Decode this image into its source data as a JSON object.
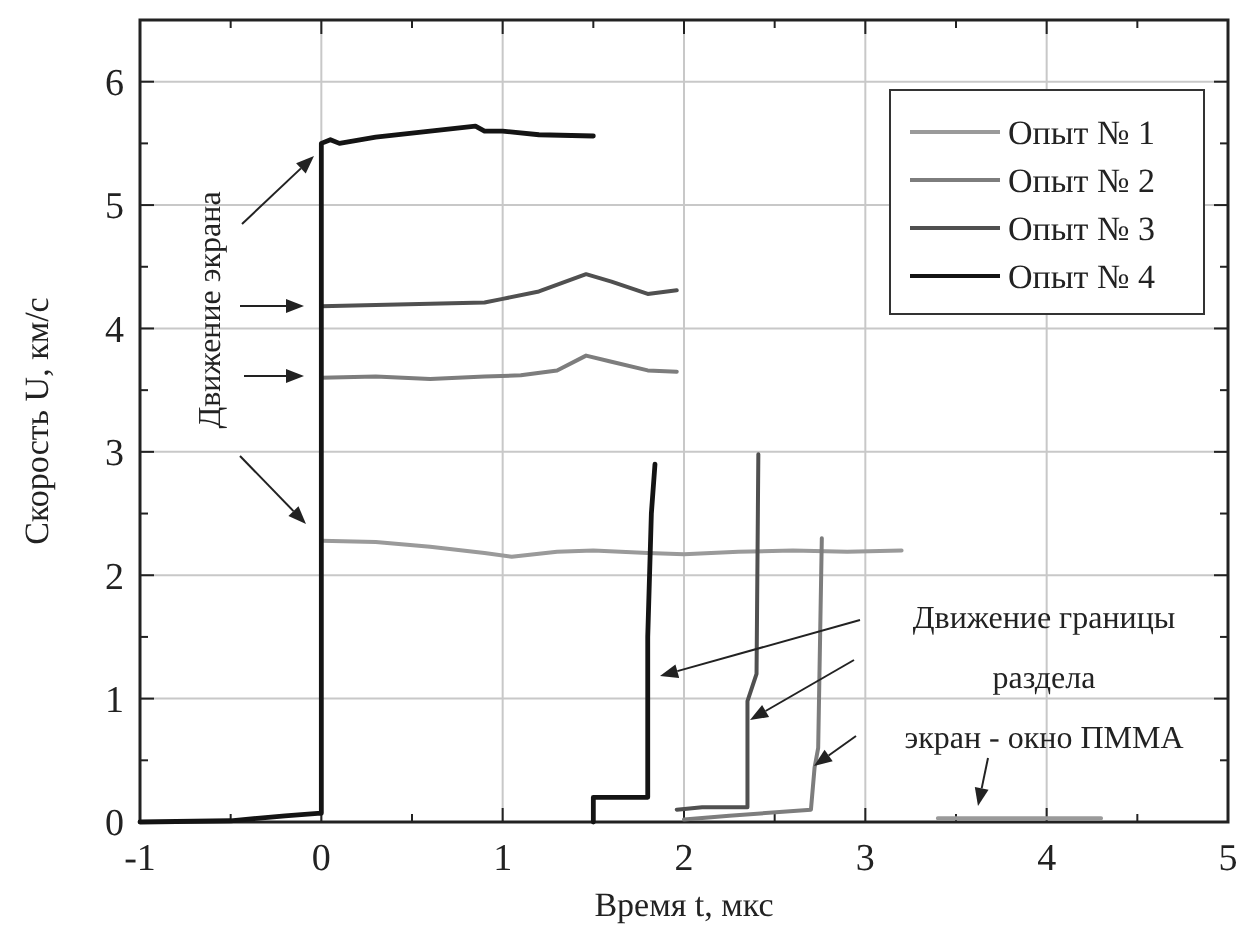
{
  "chart_data": {
    "type": "line",
    "xlabel": "Время t, мкс",
    "ylabel": "Скорость U, км/с",
    "xlim": [
      -1,
      5
    ],
    "ylim": [
      0,
      6.5
    ],
    "xticks": [
      -1,
      {
        "value": -0.5,
        "label": null
      },
      0,
      {
        "value": 0.5,
        "label": null
      },
      1,
      {
        "value": 1.5,
        "label": null
      },
      2,
      {
        "value": 2.5,
        "label": null
      },
      3,
      {
        "value": 3.5,
        "label": null
      },
      4,
      {
        "value": 4.5,
        "label": null
      },
      5
    ],
    "yticks": [
      0,
      {
        "value": 0.5,
        "label": null
      },
      1,
      {
        "value": 1.5,
        "label": null
      },
      2,
      {
        "value": 2.5,
        "label": null
      },
      3,
      {
        "value": 3.5,
        "label": null
      },
      4,
      {
        "value": 4.5,
        "label": null
      },
      5,
      {
        "value": 5.5,
        "label": null
      },
      6
    ],
    "grid": true,
    "legend": "top right",
    "line_style": "solid",
    "marker": "none",
    "series": [
      {
        "name": "Опыт № 1",
        "color": "#9a9a9a",
        "x": [
          0,
          0.3,
          0.6,
          0.9,
          1.05,
          1.3,
          1.5,
          1.8,
          2.0,
          2.3,
          2.6,
          2.9,
          3.2,
          null,
          3.4,
          3.8,
          4.3
        ],
        "values": [
          2.28,
          2.27,
          2.23,
          2.18,
          2.15,
          2.19,
          2.2,
          2.18,
          2.17,
          2.19,
          2.2,
          2.19,
          2.2,
          null,
          0.03,
          0.03,
          0.03
        ]
      },
      {
        "name": "Опыт № 2",
        "color": "#7d7d7d",
        "x": [
          0,
          0.3,
          0.6,
          0.9,
          1.1,
          1.3,
          1.46,
          1.6,
          1.8,
          1.96,
          null,
          2.0,
          2.25,
          2.7,
          2.72,
          2.74,
          2.76
        ],
        "values": [
          3.6,
          3.61,
          3.59,
          3.61,
          3.62,
          3.66,
          3.78,
          3.73,
          3.66,
          3.65,
          null,
          0.02,
          0.05,
          0.1,
          0.44,
          0.6,
          2.3
        ]
      },
      {
        "name": "Опыт № 3",
        "color": "#505050",
        "x": [
          0,
          0.3,
          0.6,
          0.9,
          1.0,
          1.2,
          1.46,
          1.6,
          1.8,
          1.96,
          null,
          1.96,
          2.1,
          2.35,
          2.35,
          2.4,
          2.41
        ],
        "values": [
          4.18,
          4.19,
          4.2,
          4.21,
          4.24,
          4.3,
          4.44,
          4.38,
          4.28,
          4.31,
          null,
          0.1,
          0.12,
          0.12,
          0.98,
          1.2,
          2.98
        ]
      },
      {
        "name": "Опыт № 4",
        "color": "#141414",
        "x": [
          -1,
          -0.5,
          -0.2,
          -0.02,
          0,
          0,
          0.05,
          0.1,
          0.3,
          0.6,
          0.85,
          0.9,
          1.0,
          1.2,
          1.5,
          null,
          1.5,
          1.5,
          1.8,
          1.8,
          1.82,
          1.84
        ],
        "values": [
          0,
          0.01,
          0.05,
          0.07,
          0.07,
          5.5,
          5.53,
          5.5,
          5.55,
          5.6,
          5.64,
          5.6,
          5.6,
          5.57,
          5.56,
          null,
          0,
          0.2,
          0.2,
          1.5,
          2.5,
          2.9
        ]
      }
    ],
    "annotations": [
      "Движение экрана",
      "Движение границы\nраздела\nэкран - окно ПММА"
    ]
  }
}
